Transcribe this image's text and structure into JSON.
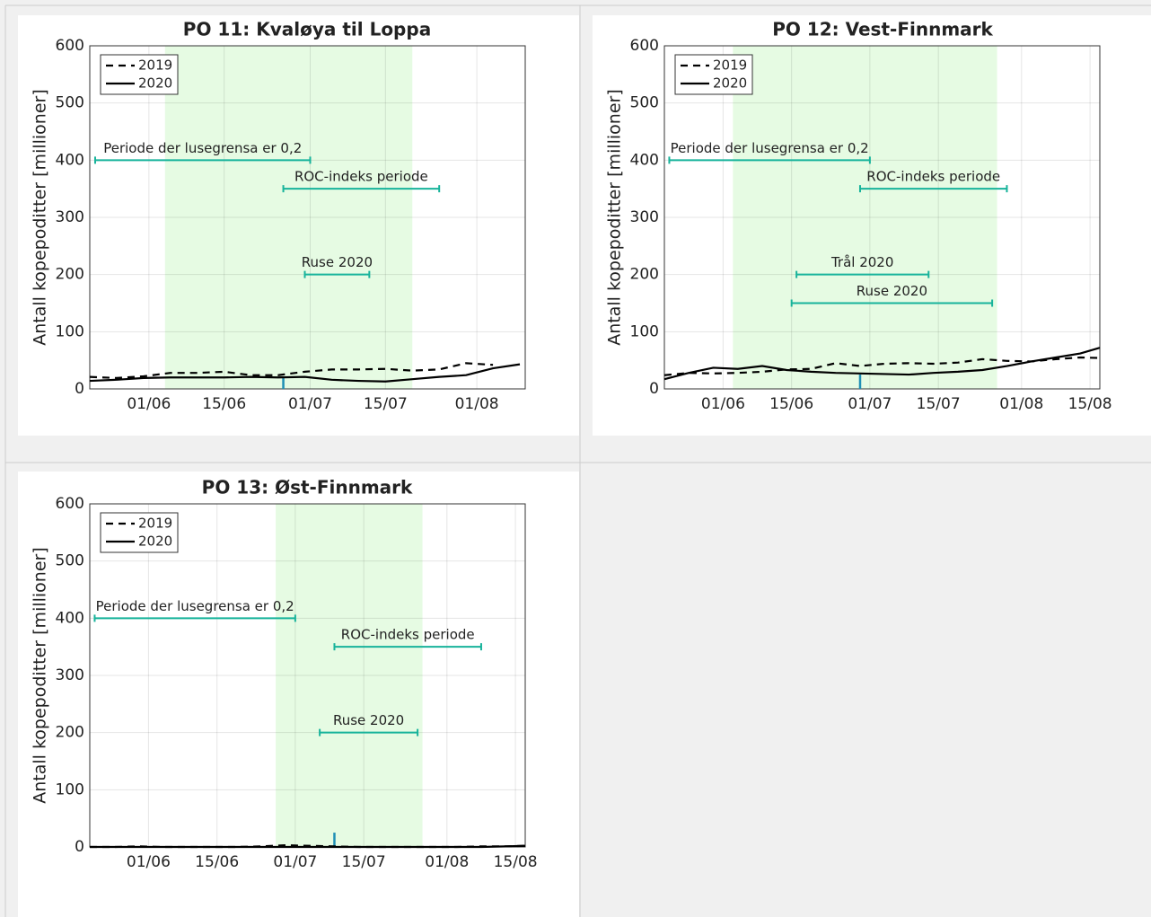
{
  "chart_data": [
    {
      "type": "line",
      "title": "PO 11: Kvaløya til Loppa",
      "ylabel": "Antall kopepoditter [millioner]",
      "x": [
        "21/05",
        "26/05",
        "31/05",
        "05/06",
        "10/06",
        "15/06",
        "20/06",
        "25/06",
        "30/06",
        "05/07",
        "10/07",
        "15/07",
        "20/07",
        "25/07",
        "30/07",
        "04/08",
        "09/08"
      ],
      "series": [
        {
          "name": "2019",
          "color": "#000000",
          "dash": true,
          "values": [
            21,
            19,
            22,
            28,
            28,
            30,
            24,
            24,
            30,
            34,
            34,
            35,
            32,
            34,
            45,
            42,
            null
          ]
        },
        {
          "name": "2020",
          "color": "#000000",
          "dash": false,
          "values": [
            14,
            16,
            19,
            20,
            20,
            20,
            21,
            20,
            21,
            16,
            14,
            13,
            17,
            21,
            24,
            36,
            43
          ]
        }
      ],
      "xlim": [
        "21/05",
        "10/08"
      ],
      "xticks": [
        "01/06",
        "15/06",
        "01/07",
        "15/07",
        "01/08"
      ],
      "ylim": [
        0,
        600
      ],
      "yticks": [
        0,
        100,
        200,
        300,
        400,
        500,
        600
      ],
      "grid": true,
      "legend": "upper left",
      "shaded_period": [
        "04/06",
        "20/07"
      ],
      "shade_color": "#e6fbe3",
      "periods": [
        {
          "label": "Periode der lusegrensa er 0,2",
          "start": "22/05",
          "end": "01/07",
          "value": 400
        },
        {
          "label": "ROC-indeks periode",
          "start": "26/06",
          "end": "25/07",
          "value": 350
        },
        {
          "label": "Ruse 2020",
          "start": "30/06",
          "end": "12/07",
          "value": 200
        }
      ],
      "period_color": "#17b39b",
      "sample_marker": {
        "x": "26/06",
        "value": 22
      },
      "marker_color": "#1f8fb5"
    },
    {
      "type": "line",
      "title": "PO 12: Vest-Finnmark",
      "ylabel": "Antall kopepoditter [millioner]",
      "x": [
        "20/05",
        "25/05",
        "30/05",
        "04/06",
        "09/06",
        "14/06",
        "19/06",
        "24/06",
        "29/06",
        "04/07",
        "09/07",
        "14/07",
        "19/07",
        "24/07",
        "29/07",
        "03/08",
        "08/08",
        "13/08",
        "17/08"
      ],
      "series": [
        {
          "name": "2019",
          "color": "#000000",
          "dash": true,
          "values": [
            24,
            28,
            27,
            28,
            30,
            34,
            35,
            45,
            40,
            44,
            45,
            44,
            46,
            52,
            49,
            48,
            52,
            55,
            54
          ]
        },
        {
          "name": "2020",
          "color": "#000000",
          "dash": false,
          "values": [
            17,
            28,
            37,
            35,
            40,
            33,
            30,
            28,
            27,
            26,
            25,
            28,
            30,
            33,
            40,
            48,
            55,
            62,
            72
          ]
        }
      ],
      "xlim": [
        "20/05",
        "17/08"
      ],
      "xticks": [
        "01/06",
        "15/06",
        "01/07",
        "15/07",
        "01/08",
        "15/08"
      ],
      "ylim": [
        0,
        600
      ],
      "yticks": [
        0,
        100,
        200,
        300,
        400,
        500,
        600
      ],
      "grid": true,
      "legend": "upper left",
      "shaded_period": [
        "03/06",
        "27/07"
      ],
      "shade_color": "#e6fbe3",
      "periods": [
        {
          "label": "Periode der lusegrensa er 0,2",
          "start": "21/05",
          "end": "01/07",
          "value": 400
        },
        {
          "label": "ROC-indeks periode",
          "start": "29/06",
          "end": "29/07",
          "value": 350
        },
        {
          "label": "Trål 2020",
          "start": "16/06",
          "end": "13/07",
          "value": 200
        },
        {
          "label": "Ruse 2020",
          "start": "15/06",
          "end": "26/07",
          "value": 150
        }
      ],
      "period_color": "#17b39b",
      "sample_marker": {
        "x": "29/06",
        "value": 25
      },
      "marker_color": "#1f8fb5"
    },
    {
      "type": "line",
      "title": "PO 13: Øst-Finnmark",
      "ylabel": "Antall kopepoditter [millioner]",
      "x": [
        "20/05",
        "25/05",
        "30/05",
        "04/06",
        "09/06",
        "14/06",
        "19/06",
        "24/06",
        "29/06",
        "04/07",
        "09/07",
        "14/07",
        "19/07",
        "24/07",
        "29/07",
        "03/08",
        "08/08",
        "13/08",
        "17/08"
      ],
      "series": [
        {
          "name": "2019",
          "color": "#000000",
          "dash": true,
          "values": [
            0,
            0,
            1,
            0,
            0,
            0,
            0,
            1,
            3,
            2,
            1,
            0,
            0,
            0,
            0,
            0,
            1,
            1,
            2
          ]
        },
        {
          "name": "2020",
          "color": "#000000",
          "dash": false,
          "values": [
            0,
            0,
            0,
            0,
            0,
            0,
            0,
            0,
            0,
            0,
            0,
            0,
            0,
            0,
            0,
            0,
            0,
            1,
            2
          ]
        }
      ],
      "xlim": [
        "20/05",
        "17/08"
      ],
      "xticks": [
        "01/06",
        "15/06",
        "01/07",
        "15/07",
        "01/08",
        "15/08"
      ],
      "ylim": [
        0,
        600
      ],
      "yticks": [
        0,
        100,
        200,
        300,
        400,
        500,
        600
      ],
      "grid": true,
      "legend": "upper left",
      "shaded_period": [
        "27/06",
        "27/07"
      ],
      "shade_color": "#e6fbe3",
      "periods": [
        {
          "label": "Periode der lusegrensa er 0,2",
          "start": "21/05",
          "end": "01/07",
          "value": 400
        },
        {
          "label": "ROC-indeks periode",
          "start": "09/07",
          "end": "08/08",
          "value": 350
        },
        {
          "label": "Ruse 2020",
          "start": "06/07",
          "end": "26/07",
          "value": 200
        }
      ],
      "period_color": "#17b39b",
      "sample_marker": {
        "x": "09/07",
        "value": 25
      },
      "marker_color": "#1f8fb5"
    }
  ]
}
